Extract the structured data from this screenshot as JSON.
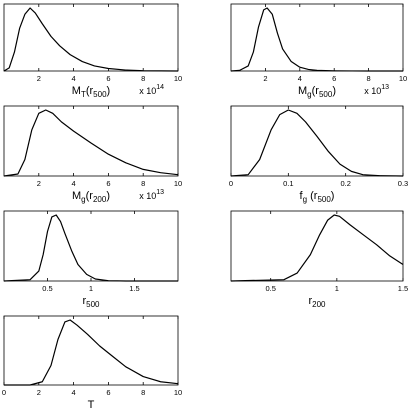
{
  "chart_data": [
    {
      "type": "line",
      "xlabel": "M_T(r_500)",
      "xlabel_parts": [
        [
          "M",
          "n"
        ],
        [
          "T",
          "sub"
        ],
        [
          "(r",
          "n"
        ],
        [
          "500",
          "sub"
        ],
        [
          ")",
          "n"
        ]
      ],
      "x_exponent": "14",
      "xlim": [
        0,
        10
      ],
      "xticks": [
        2,
        4,
        6,
        8,
        10
      ],
      "xtick_labels": [
        "2",
        "4",
        "6",
        "8",
        "10"
      ],
      "x": [
        0,
        0.3,
        0.6,
        0.9,
        1.2,
        1.5,
        1.8,
        2.2,
        2.7,
        3.2,
        3.8,
        4.5,
        5.2,
        6,
        7,
        8,
        9,
        10
      ],
      "y": [
        0,
        0.05,
        0.3,
        0.68,
        0.9,
        1.0,
        0.92,
        0.75,
        0.55,
        0.4,
        0.26,
        0.15,
        0.08,
        0.04,
        0.015,
        0.005,
        0.002,
        0
      ]
    },
    {
      "type": "line",
      "xlabel": "M_g(r_500)",
      "xlabel_parts": [
        [
          "M",
          "n"
        ],
        [
          "g",
          "sub"
        ],
        [
          "(r",
          "n"
        ],
        [
          "500",
          "sub"
        ],
        [
          ")",
          "n"
        ]
      ],
      "x_exponent": "13",
      "xlim": [
        0,
        10
      ],
      "xticks": [
        2,
        4,
        6,
        8,
        10
      ],
      "xtick_labels": [
        "2",
        "4",
        "6",
        "8",
        "10"
      ],
      "x": [
        0,
        0.5,
        1,
        1.3,
        1.6,
        1.9,
        2.1,
        2.4,
        2.7,
        3,
        3.5,
        4,
        4.5,
        5,
        6,
        7,
        8,
        10
      ],
      "y": [
        0,
        0.01,
        0.08,
        0.3,
        0.7,
        0.97,
        1.0,
        0.9,
        0.6,
        0.35,
        0.15,
        0.06,
        0.025,
        0.01,
        0.003,
        0.001,
        0,
        0
      ]
    },
    {
      "type": "line",
      "xlabel": "M_g(r_200)",
      "xlabel_parts": [
        [
          "M",
          "n"
        ],
        [
          "g",
          "sub"
        ],
        [
          "(r",
          "n"
        ],
        [
          "200",
          "sub"
        ],
        [
          ")",
          "n"
        ]
      ],
      "x_exponent": "13",
      "xlim": [
        0,
        10
      ],
      "xticks": [
        2,
        4,
        6,
        8,
        10
      ],
      "xtick_labels": [
        "2",
        "4",
        "6",
        "8",
        "10"
      ],
      "x": [
        0,
        0.8,
        1.2,
        1.6,
        2.0,
        2.4,
        2.8,
        3.3,
        4,
        5,
        6,
        7,
        8,
        9,
        10
      ],
      "y": [
        0,
        0.03,
        0.25,
        0.7,
        0.95,
        1.0,
        0.95,
        0.82,
        0.68,
        0.5,
        0.33,
        0.2,
        0.1,
        0.05,
        0.02
      ]
    },
    {
      "type": "line",
      "xlabel": "f_g(r_500)",
      "xlabel_parts": [
        [
          "f",
          "n"
        ],
        [
          "g",
          "sub"
        ],
        [
          " (r",
          "n"
        ],
        [
          "500",
          "sub"
        ],
        [
          ")",
          "n"
        ]
      ],
      "x_exponent": "",
      "xlim": [
        0,
        0.3
      ],
      "xticks": [
        0,
        0.1,
        0.2,
        0.3
      ],
      "xtick_labels": [
        "0",
        "0.1",
        "0.2",
        "0.3"
      ],
      "x": [
        0,
        0.03,
        0.05,
        0.07,
        0.085,
        0.1,
        0.115,
        0.13,
        0.15,
        0.17,
        0.19,
        0.21,
        0.23,
        0.26,
        0.3
      ],
      "y": [
        0,
        0.02,
        0.25,
        0.7,
        0.93,
        1.0,
        0.95,
        0.82,
        0.6,
        0.37,
        0.18,
        0.07,
        0.02,
        0.005,
        0
      ]
    },
    {
      "type": "line",
      "xlabel": "r_500",
      "xlabel_parts": [
        [
          "r",
          "n"
        ],
        [
          "500",
          "sub"
        ]
      ],
      "x_exponent": "",
      "xlim": [
        0,
        2
      ],
      "xticks": [
        0.5,
        1,
        1.5
      ],
      "xtick_labels": [
        "0.5",
        "1",
        "1.5"
      ],
      "x": [
        0,
        0.3,
        0.4,
        0.45,
        0.5,
        0.55,
        0.6,
        0.65,
        0.7,
        0.78,
        0.85,
        0.95,
        1.05,
        1.2,
        1.4,
        2
      ],
      "y": [
        0,
        0.02,
        0.15,
        0.4,
        0.75,
        0.97,
        1.0,
        0.9,
        0.72,
        0.45,
        0.25,
        0.1,
        0.03,
        0.005,
        0,
        0
      ]
    },
    {
      "type": "line",
      "xlabel": "r_200",
      "xlabel_parts": [
        [
          "r",
          "n"
        ],
        [
          "200",
          "sub"
        ]
      ],
      "x_exponent": "",
      "xlim": [
        0.2,
        1.5
      ],
      "xticks": [
        0.5,
        1,
        1.5
      ],
      "xtick_labels": [
        "0.5",
        "1",
        "1.5"
      ],
      "x": [
        0.2,
        0.6,
        0.7,
        0.8,
        0.87,
        0.93,
        0.98,
        1.02,
        1.1,
        1.2,
        1.3,
        1.4,
        1.5
      ],
      "y": [
        0,
        0.02,
        0.12,
        0.4,
        0.7,
        0.92,
        1.0,
        0.98,
        0.85,
        0.7,
        0.55,
        0.38,
        0.25
      ]
    },
    {
      "type": "line",
      "xlabel": "T",
      "xlabel_parts": [
        [
          "T",
          "n"
        ]
      ],
      "x_exponent": "",
      "xlim": [
        0,
        10
      ],
      "xticks": [
        0,
        2,
        4,
        6,
        8,
        10
      ],
      "xtick_labels": [
        "0",
        "2",
        "4",
        "6",
        "8",
        "10"
      ],
      "x": [
        0,
        1.5,
        2.2,
        2.7,
        3.1,
        3.5,
        3.8,
        4.2,
        4.8,
        5.5,
        6.2,
        7,
        8,
        9,
        10
      ],
      "y": [
        0,
        0,
        0.05,
        0.3,
        0.7,
        0.97,
        1.0,
        0.92,
        0.78,
        0.6,
        0.45,
        0.28,
        0.13,
        0.05,
        0.02
      ]
    }
  ]
}
